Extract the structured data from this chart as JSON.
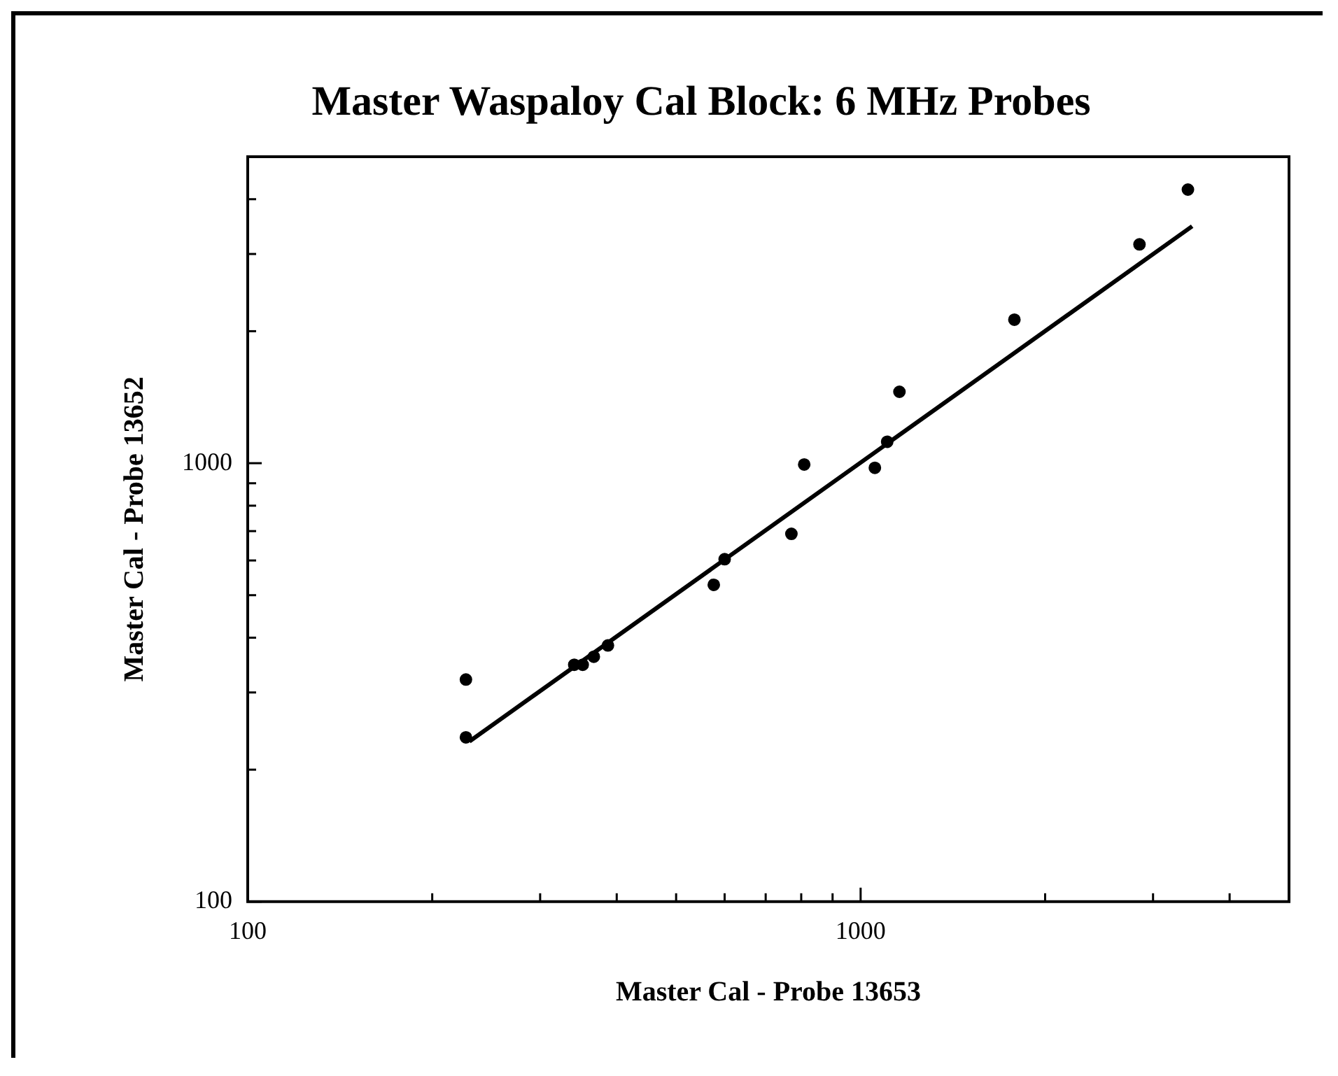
{
  "chart_data": {
    "type": "scatter",
    "title": "Master Waspaloy Cal Block: 6 MHz Probes",
    "xlabel": "Master Cal - Probe 13653",
    "ylabel": "Master Cal - Probe 13652",
    "log": "xy",
    "marker": "circle",
    "xlim": [
      100,
      5000
    ],
    "ylim": [
      100,
      5000
    ],
    "xticks": [
      100,
      {
        "value": 200,
        "label": null
      },
      {
        "value": 300,
        "label": null
      },
      {
        "value": 400,
        "label": null
      },
      {
        "value": 500,
        "label": null
      },
      {
        "value": 600,
        "label": null
      },
      {
        "value": 700,
        "label": null
      },
      {
        "value": 800,
        "label": null
      },
      {
        "value": 900,
        "label": null
      },
      1000,
      {
        "value": 2000,
        "label": null
      },
      {
        "value": 3000,
        "label": null
      },
      {
        "value": 4000,
        "label": null
      }
    ],
    "yticks": [
      100,
      {
        "value": 200,
        "label": null
      },
      {
        "value": 300,
        "label": null
      },
      {
        "value": 400,
        "label": null
      },
      {
        "value": 500,
        "label": null
      },
      {
        "value": 600,
        "label": null
      },
      {
        "value": 700,
        "label": null
      },
      {
        "value": 800,
        "label": null
      },
      {
        "value": 900,
        "label": null
      },
      1000,
      {
        "value": 2000,
        "label": null
      },
      {
        "value": 3000,
        "label": null
      },
      {
        "value": 4000,
        "label": null
      }
    ],
    "series": [
      {
        "color": "#000000",
        "x": [
          227,
          227,
          341,
          352,
          367,
          387,
          576,
          600,
          771,
          809,
          1055,
          1105,
          1157,
          1782,
          2851,
          3420
        ],
        "values": [
          321,
          237,
          347,
          347,
          362,
          384,
          528,
          604,
          690,
          993,
          976,
          1119,
          1455,
          2125,
          3155,
          4207
        ]
      },
      {
        "type": "line",
        "marker": "none",
        "color": "#000000",
        "x": [
          230,
          3475
        ],
        "values": [
          232,
          3470
        ]
      }
    ]
  }
}
